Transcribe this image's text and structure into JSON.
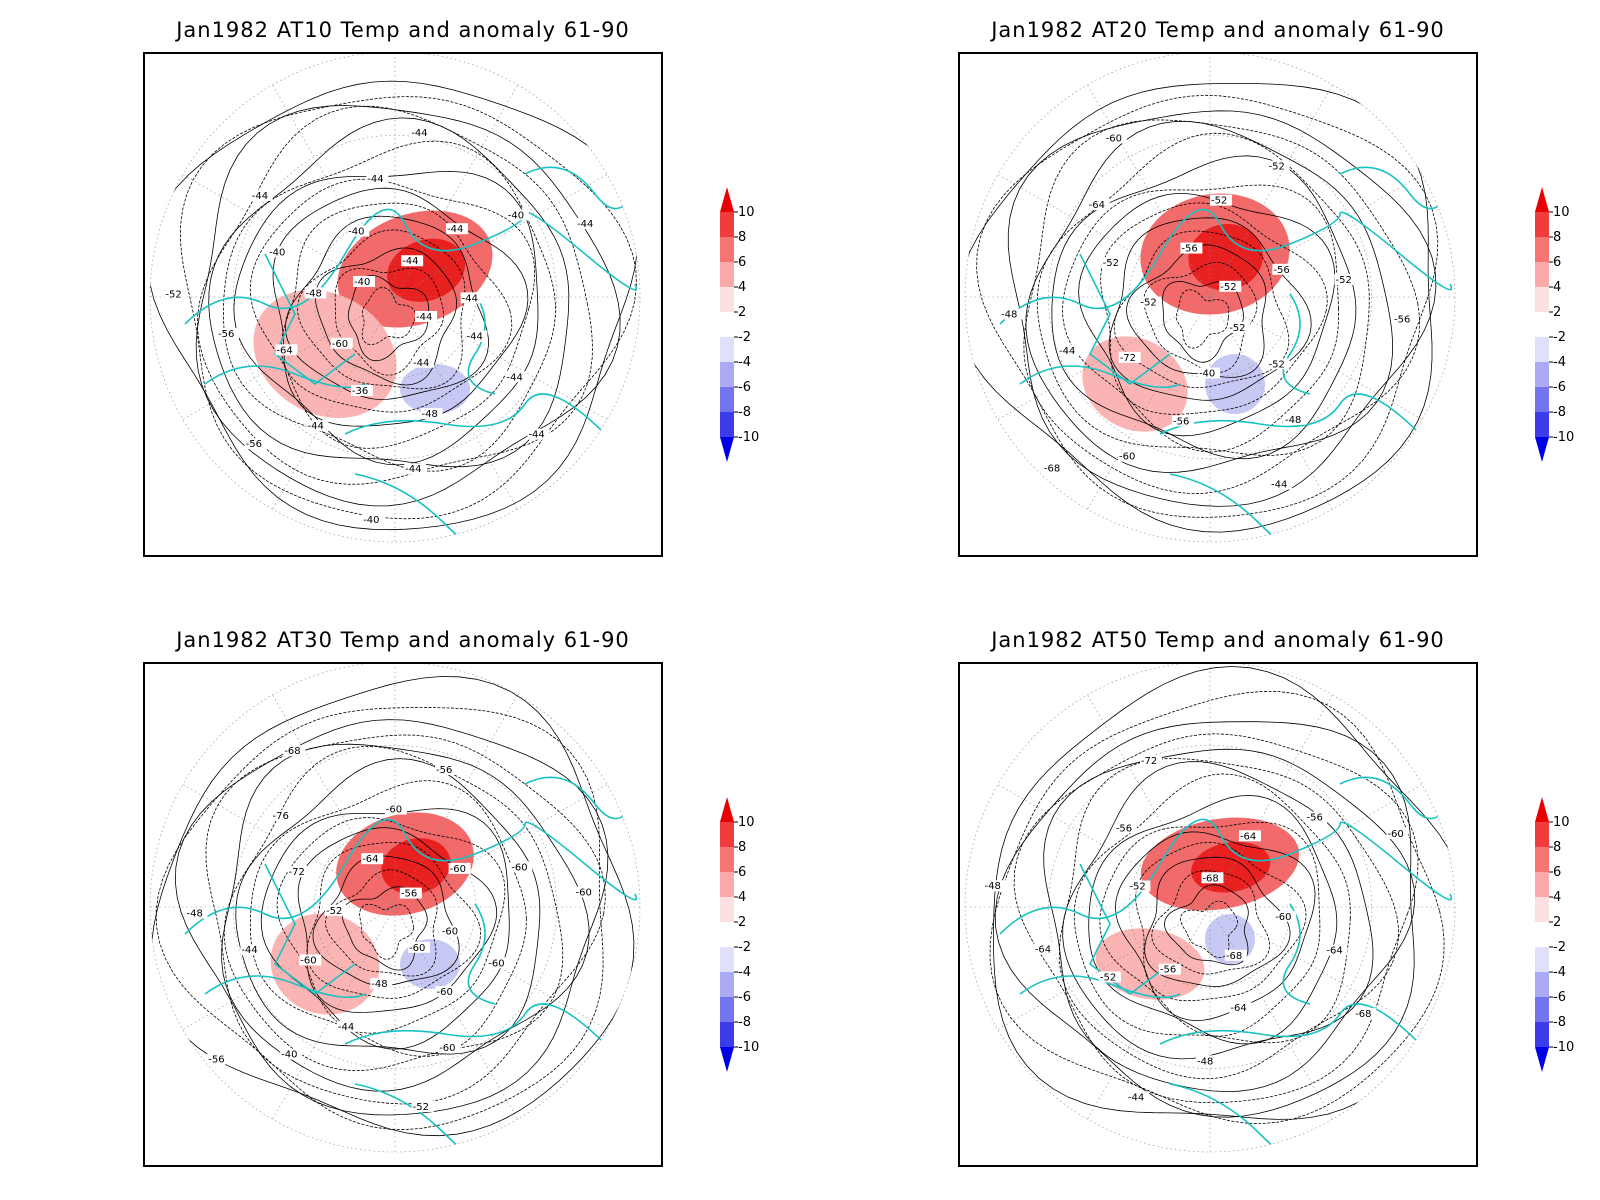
{
  "panels": [
    {
      "title": "Jan1982 AT10 Temp and anomaly 61-90",
      "contour_labels": [
        "-44",
        "-44",
        "-44",
        "-44",
        "-44",
        "-48",
        "-44",
        "-40",
        "-36",
        "-44",
        "-56",
        "-60",
        "-64",
        "-56",
        "-52",
        "-48",
        "-40",
        "-44",
        "-40",
        "-40",
        "-44",
        "-44",
        "-44",
        "-44",
        "-40",
        "-44",
        "-44"
      ],
      "anomaly_blobs": [
        {
          "sign": "warm",
          "intensity": 3
        },
        {
          "sign": "warm",
          "intensity": 2
        },
        {
          "sign": "cold",
          "intensity": 1
        }
      ]
    },
    {
      "title": "Jan1982 AT20 Temp and anomaly 61-90",
      "contour_labels": [
        "-52",
        "-52",
        "-48",
        "-44",
        "-40",
        "-56",
        "-60",
        "-68",
        "-72",
        "-44",
        "-48",
        "-52",
        "-52",
        "-64",
        "-60",
        "-56",
        "-52",
        "-52",
        "-52",
        "-56",
        "-52",
        "-56"
      ],
      "anomaly_blobs": [
        {
          "sign": "warm",
          "intensity": 3
        },
        {
          "sign": "warm",
          "intensity": 2
        },
        {
          "sign": "cold",
          "intensity": 1
        }
      ]
    },
    {
      "title": "Jan1982 AT30 Temp and anomaly 61-90",
      "contour_labels": [
        "-60",
        "-60",
        "-60",
        "-52",
        "-48",
        "-44",
        "-40",
        "-56",
        "-60",
        "-44",
        "-48",
        "-52",
        "-72",
        "-76",
        "-68",
        "-64",
        "-60",
        "-56",
        "-56",
        "-60",
        "-60",
        "-60",
        "-60",
        "-60"
      ],
      "anomaly_blobs": [
        {
          "sign": "warm",
          "intensity": 3
        },
        {
          "sign": "warm",
          "intensity": 2
        },
        {
          "sign": "cold",
          "intensity": 1
        }
      ]
    },
    {
      "title": "Jan1982 AT50 Temp and anomaly 61-90",
      "contour_labels": [
        "-68",
        "-64",
        "-48",
        "-44",
        "-56",
        "-52",
        "-64",
        "-48",
        "-52",
        "-56",
        "-72",
        "-68",
        "-64",
        "-56",
        "-60",
        "-60",
        "-64",
        "-68"
      ],
      "anomaly_blobs": [
        {
          "sign": "warm",
          "intensity": 3
        },
        {
          "sign": "warm",
          "intensity": 2
        },
        {
          "sign": "cold",
          "intensity": 1
        }
      ]
    }
  ],
  "colorbar": {
    "labels": [
      "10",
      "8",
      "6",
      "4",
      "2",
      "-2",
      "-4",
      "-6",
      "-8",
      "-10"
    ],
    "colors": [
      "#e80000",
      "#f03c3c",
      "#f77474",
      "#fbaaaa",
      "#fde0e0",
      "#ffffff",
      "#e0e0fb",
      "#aaaaf5",
      "#7474ef",
      "#3c3ce8",
      "#0000e8"
    ]
  },
  "colors": {
    "coast": "#19c2c2",
    "contour": "#000000",
    "grid": "#888888"
  }
}
